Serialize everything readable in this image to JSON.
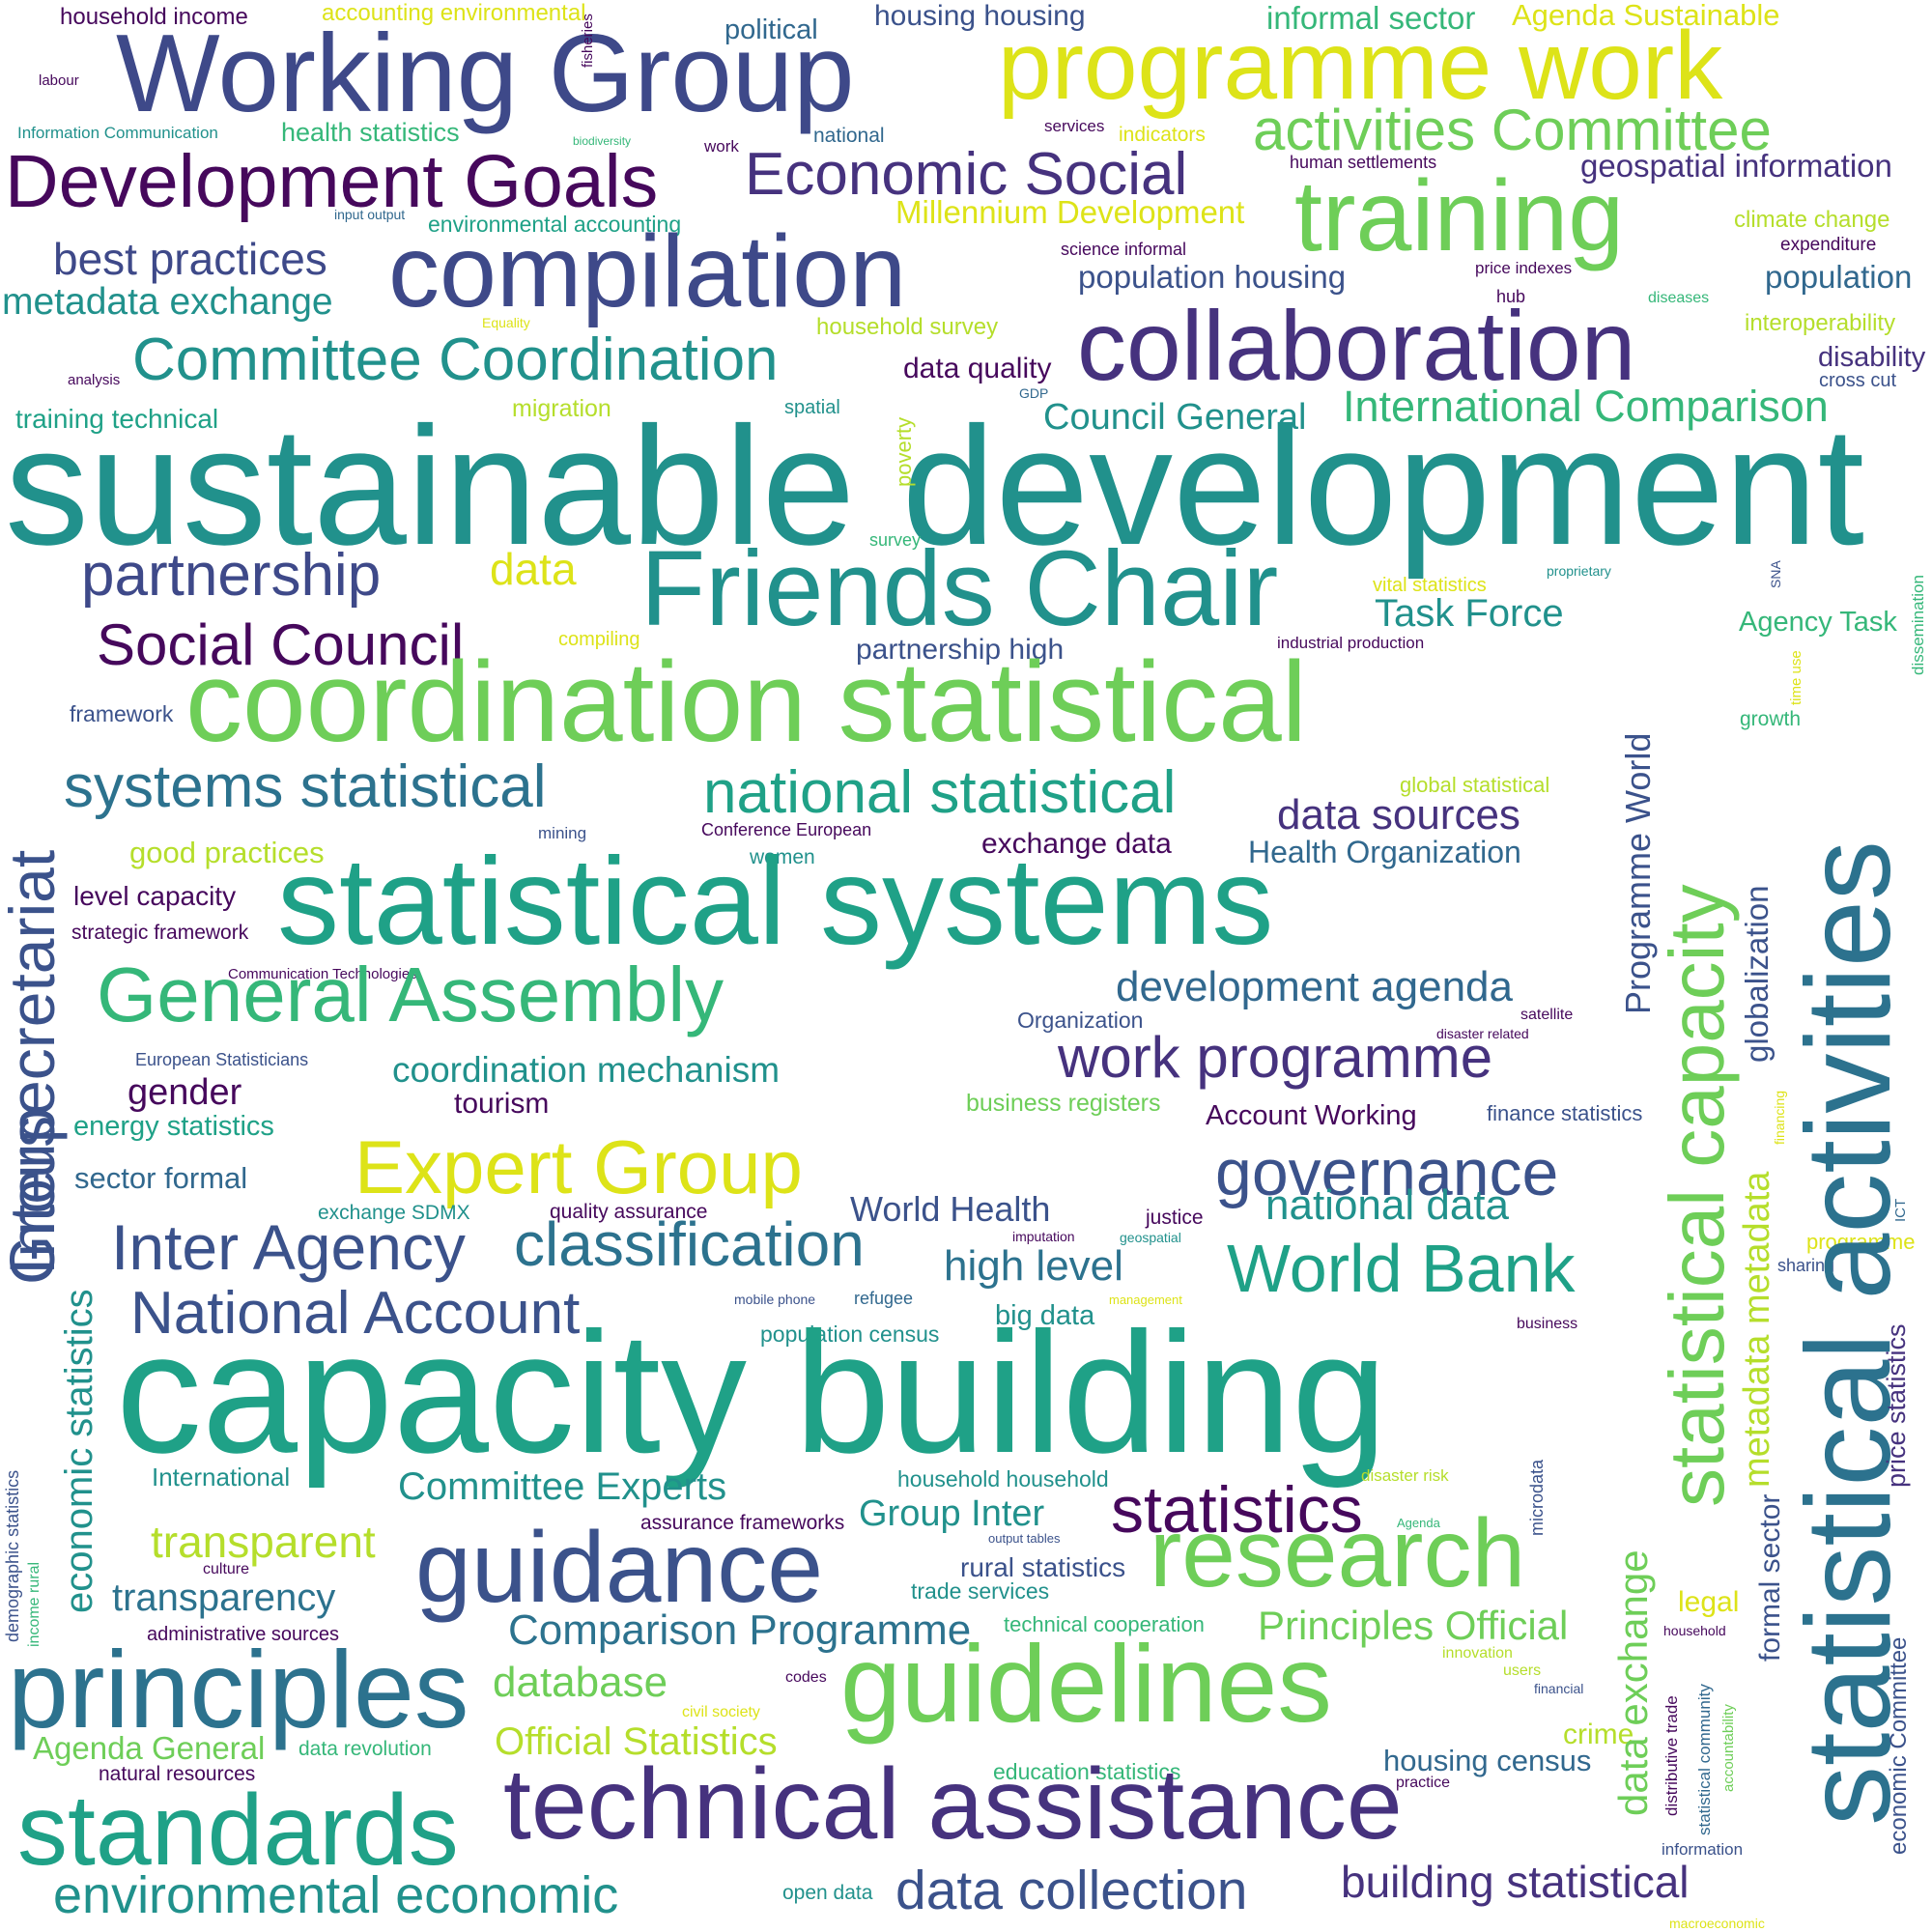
{
  "palette": {
    "dark_purple": "#46085c",
    "indigo": "#3b528b",
    "dark_blue": "#31688e",
    "teal": "#21918c",
    "green_teal": "#1fa187",
    "green": "#35b779",
    "light_green": "#6ece58",
    "yellow_green": "#b5de2b",
    "yellow": "#dde318"
  },
  "words": [
    {
      "text": "household income",
      "color": "#46085c"
    },
    {
      "text": "accounting environmental",
      "color": "#dde318"
    },
    {
      "text": "fisheries",
      "color": "#46085c"
    },
    {
      "text": "political",
      "color": "#31688e"
    },
    {
      "text": "housing housing",
      "color": "#3b528b"
    },
    {
      "text": "informal sector",
      "color": "#35b779"
    },
    {
      "text": "Agenda Sustainable",
      "color": "#dde318"
    },
    {
      "text": "labour",
      "color": "#46085c"
    },
    {
      "text": "Working Group",
      "color": "#3e4989"
    },
    {
      "text": "programme work",
      "color": "#dde318"
    },
    {
      "text": "Information Communication",
      "color": "#21918c"
    },
    {
      "text": "health statistics",
      "color": "#35b779"
    },
    {
      "text": "biodiversity",
      "color": "#35b779"
    },
    {
      "text": "work",
      "color": "#46085c"
    },
    {
      "text": "national",
      "color": "#31688e"
    },
    {
      "text": "services",
      "color": "#46085c"
    },
    {
      "text": "indicators",
      "color": "#dde318"
    },
    {
      "text": "activities Committee",
      "color": "#6ece58"
    },
    {
      "text": "Development Goals",
      "color": "#46085c"
    },
    {
      "text": "Economic Social",
      "color": "#46327e"
    },
    {
      "text": "human settlements",
      "color": "#46085c"
    },
    {
      "text": "geospatial information",
      "color": "#46327e"
    },
    {
      "text": "input output",
      "color": "#31688e"
    },
    {
      "text": "environmental accounting",
      "color": "#1fa187"
    },
    {
      "text": "Millennium Development",
      "color": "#dde318"
    },
    {
      "text": "training",
      "color": "#6ece58"
    },
    {
      "text": "climate change",
      "color": "#b5de2b"
    },
    {
      "text": "expenditure",
      "color": "#46085c"
    },
    {
      "text": "best practices",
      "color": "#3e4989"
    },
    {
      "text": "compilation",
      "color": "#3e4989"
    },
    {
      "text": "science informal",
      "color": "#46085c"
    },
    {
      "text": "population housing",
      "color": "#3b528b"
    },
    {
      "text": "price indexes",
      "color": "#46085c"
    },
    {
      "text": "population",
      "color": "#31688e"
    },
    {
      "text": "metadata exchange",
      "color": "#21918c"
    },
    {
      "text": "hub",
      "color": "#46085c"
    },
    {
      "text": "diseases",
      "color": "#35b779"
    },
    {
      "text": "Equality",
      "color": "#dde318"
    },
    {
      "text": "household survey",
      "color": "#b5de2b"
    },
    {
      "text": "interoperability",
      "color": "#b5de2b"
    },
    {
      "text": "collaboration",
      "color": "#46327e"
    },
    {
      "text": "analysis",
      "color": "#46085c"
    },
    {
      "text": "Committee Coordination",
      "color": "#21918c"
    },
    {
      "text": "data quality",
      "color": "#46085c"
    },
    {
      "text": "disability",
      "color": "#46327e"
    },
    {
      "text": "cross cut",
      "color": "#3b528b"
    },
    {
      "text": "GDP",
      "color": "#31688e"
    },
    {
      "text": "training technical",
      "color": "#1fa187"
    },
    {
      "text": "migration",
      "color": "#b5de2b"
    },
    {
      "text": "spatial",
      "color": "#21918c"
    },
    {
      "text": "International Comparison",
      "color": "#35b779"
    },
    {
      "text": "Council General",
      "color": "#21918c"
    },
    {
      "text": "poverty",
      "color": "#b5de2b"
    },
    {
      "text": "sustainable development",
      "color": "#21918c"
    },
    {
      "text": "survey",
      "color": "#35b779"
    },
    {
      "text": "partnership",
      "color": "#3e4989"
    },
    {
      "text": "data",
      "color": "#dde318"
    },
    {
      "text": "Friends Chair",
      "color": "#21918c"
    },
    {
      "text": "vital statistics",
      "color": "#dde318"
    },
    {
      "text": "proprietary",
      "color": "#21918c"
    },
    {
      "text": "SNA",
      "color": "#3b528b"
    },
    {
      "text": "dissemination",
      "color": "#35b779"
    },
    {
      "text": "Task Force",
      "color": "#21918c"
    },
    {
      "text": "Agency Task",
      "color": "#35b779"
    },
    {
      "text": "Social Council",
      "color": "#46085c"
    },
    {
      "text": "compiling",
      "color": "#dde318"
    },
    {
      "text": "partnership high",
      "color": "#3b528b"
    },
    {
      "text": "industrial production",
      "color": "#46085c"
    },
    {
      "text": "time use",
      "color": "#dde318"
    },
    {
      "text": "Intersecretariat",
      "color": "#3b528b"
    },
    {
      "text": "framework",
      "color": "#3b528b"
    },
    {
      "text": "coordination statistical",
      "color": "#6ece58"
    },
    {
      "text": "statistical capacity",
      "color": "#6ece58"
    },
    {
      "text": "statistical activities",
      "color": "#2c728e"
    },
    {
      "text": "Programme World",
      "color": "#3b528b"
    },
    {
      "text": "growth",
      "color": "#35b779"
    },
    {
      "text": "systems statistical",
      "color": "#2c728e"
    },
    {
      "text": "national statistical",
      "color": "#1fa187"
    },
    {
      "text": "global statistical",
      "color": "#b5de2b"
    },
    {
      "text": "data sources",
      "color": "#46327e"
    },
    {
      "text": "mining",
      "color": "#3b528b"
    },
    {
      "text": "Conference European",
      "color": "#46085c"
    },
    {
      "text": "good practices",
      "color": "#b5de2b"
    },
    {
      "text": "women",
      "color": "#21918c"
    },
    {
      "text": "exchange data",
      "color": "#46085c"
    },
    {
      "text": "Health Organization",
      "color": "#31688e"
    },
    {
      "text": "level capacity",
      "color": "#46085c"
    },
    {
      "text": "statistical systems",
      "color": "#1fa187"
    },
    {
      "text": "globalization",
      "color": "#3b528b"
    },
    {
      "text": "strategic framework",
      "color": "#46085c"
    },
    {
      "text": "Communication Technologies",
      "color": "#46085c"
    },
    {
      "text": "General Assembly",
      "color": "#35b779"
    },
    {
      "text": "development agenda",
      "color": "#31688e"
    },
    {
      "text": "satellite",
      "color": "#46085c"
    },
    {
      "text": "Organization",
      "color": "#3b528b"
    },
    {
      "text": "disaster related",
      "color": "#46085c"
    },
    {
      "text": "European Statisticians",
      "color": "#3b528b"
    },
    {
      "text": "coordination mechanism",
      "color": "#21918c"
    },
    {
      "text": "work programme",
      "color": "#46327e"
    },
    {
      "text": "gender",
      "color": "#46085c"
    },
    {
      "text": "tourism",
      "color": "#46085c"
    },
    {
      "text": "business registers",
      "color": "#6ece58"
    },
    {
      "text": "financing",
      "color": "#dde318"
    },
    {
      "text": "energy statistics",
      "color": "#1fa187"
    },
    {
      "text": "Account Working",
      "color": "#46085c"
    },
    {
      "text": "finance statistics",
      "color": "#3b528b"
    },
    {
      "text": "Expert Group",
      "color": "#dde318"
    },
    {
      "text": "metadata metadata",
      "color": "#b5de2b"
    },
    {
      "text": "sector formal",
      "color": "#31688e"
    },
    {
      "text": "governance",
      "color": "#3b528b"
    },
    {
      "text": "ICT",
      "color": "#31688e"
    },
    {
      "text": "Group",
      "color": "#3b528b"
    },
    {
      "text": "exchange SDMX",
      "color": "#21918c"
    },
    {
      "text": "quality assurance",
      "color": "#46085c"
    },
    {
      "text": "World Health",
      "color": "#3b528b"
    },
    {
      "text": "justice",
      "color": "#46085c"
    },
    {
      "text": "national data",
      "color": "#21918c"
    },
    {
      "text": "Inter Agency",
      "color": "#3b528b"
    },
    {
      "text": "classification",
      "color": "#2c728e"
    },
    {
      "text": "imputation",
      "color": "#46085c"
    },
    {
      "text": "geospatial",
      "color": "#21918c"
    },
    {
      "text": "programme",
      "color": "#dde318"
    },
    {
      "text": "high level",
      "color": "#2c728e"
    },
    {
      "text": "World Bank",
      "color": "#1fa187"
    },
    {
      "text": "sharing",
      "color": "#3b528b"
    },
    {
      "text": "economic statistics",
      "color": "#21918c"
    },
    {
      "text": "National Account",
      "color": "#3b528b"
    },
    {
      "text": "mobile phone",
      "color": "#3b528b"
    },
    {
      "text": "refugee",
      "color": "#31688e"
    },
    {
      "text": "management",
      "color": "#dde318"
    },
    {
      "text": "big data",
      "color": "#21918c"
    },
    {
      "text": "population census",
      "color": "#21918c"
    },
    {
      "text": "business",
      "color": "#46085c"
    },
    {
      "text": "price statistics",
      "color": "#46327e"
    },
    {
      "text": "capacity building",
      "color": "#1fa187"
    },
    {
      "text": "demographic statistics",
      "color": "#3b528b"
    },
    {
      "text": "International",
      "color": "#21918c"
    },
    {
      "text": "household household",
      "color": "#21918c"
    },
    {
      "text": "disaster risk",
      "color": "#b5de2b"
    },
    {
      "text": "microdata",
      "color": "#3b528b"
    },
    {
      "text": "Committee Experts",
      "color": "#21918c"
    },
    {
      "text": "Group Inter",
      "color": "#21918c"
    },
    {
      "text": "statistics",
      "color": "#46085c"
    },
    {
      "text": "assurance frameworks",
      "color": "#46085c"
    },
    {
      "text": "output tables",
      "color": "#3b528b"
    },
    {
      "text": "Agenda",
      "color": "#35b779"
    },
    {
      "text": "transparent",
      "color": "#b5de2b"
    },
    {
      "text": "culture",
      "color": "#46085c"
    },
    {
      "text": "guidance",
      "color": "#3b528b"
    },
    {
      "text": "research",
      "color": "#6ece58"
    },
    {
      "text": "data exchange",
      "color": "#6ece58"
    },
    {
      "text": "income rural",
      "color": "#35b779"
    },
    {
      "text": "rural statistics",
      "color": "#3b528b"
    },
    {
      "text": "trade services",
      "color": "#21918c"
    },
    {
      "text": "transparency",
      "color": "#2c728e"
    },
    {
      "text": "legal",
      "color": "#dde318"
    },
    {
      "text": "formal sector",
      "color": "#3b528b"
    },
    {
      "text": "administrative sources",
      "color": "#46085c"
    },
    {
      "text": "technical cooperation",
      "color": "#35b779"
    },
    {
      "text": "Comparison Programme",
      "color": "#2c728e"
    },
    {
      "text": "Principles Official",
      "color": "#6ece58"
    },
    {
      "text": "household",
      "color": "#46085c"
    },
    {
      "text": "economic Committee",
      "color": "#3b528b"
    },
    {
      "text": "principles",
      "color": "#2c728e"
    },
    {
      "text": "innovation",
      "color": "#b5de2b"
    },
    {
      "text": "guidelines",
      "color": "#6ece58"
    },
    {
      "text": "codes",
      "color": "#46085c"
    },
    {
      "text": "database",
      "color": "#6ece58"
    },
    {
      "text": "users",
      "color": "#b5de2b"
    },
    {
      "text": "financial",
      "color": "#3b528b"
    },
    {
      "text": "statistical community",
      "color": "#31688e"
    },
    {
      "text": "civil society",
      "color": "#dde318"
    },
    {
      "text": "distributive trade",
      "color": "#46085c"
    },
    {
      "text": "accountability",
      "color": "#6ece58"
    },
    {
      "text": "Agenda General",
      "color": "#6ece58"
    },
    {
      "text": "data revolution",
      "color": "#35b779"
    },
    {
      "text": "Official Statistics",
      "color": "#b5de2b"
    },
    {
      "text": "crime",
      "color": "#b5de2b"
    },
    {
      "text": "housing census",
      "color": "#31688e"
    },
    {
      "text": "natural resources",
      "color": "#46085c"
    },
    {
      "text": "education statistics",
      "color": "#35b779"
    },
    {
      "text": "practice",
      "color": "#46085c"
    },
    {
      "text": "standards",
      "color": "#1fa187"
    },
    {
      "text": "technical assistance",
      "color": "#46327e"
    },
    {
      "text": "information",
      "color": "#3b528b"
    },
    {
      "text": "environmental economic",
      "color": "#21918c"
    },
    {
      "text": "open data",
      "color": "#21918c"
    },
    {
      "text": "data collection",
      "color": "#3b528b"
    },
    {
      "text": "building statistical",
      "color": "#46327e"
    },
    {
      "text": "macroeconomic",
      "color": "#dde318"
    }
  ]
}
